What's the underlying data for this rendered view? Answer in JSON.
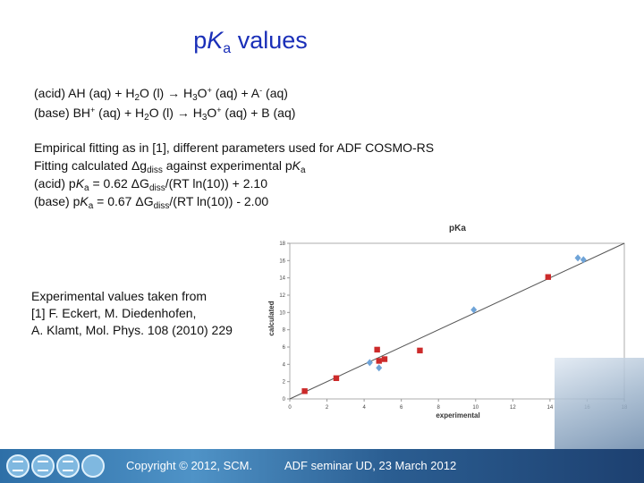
{
  "slide": {
    "title": {
      "p": "p",
      "K": "K",
      "a": "a",
      "rest": " values"
    },
    "equations": {
      "acid": {
        "pre": "(acid) AH (aq) + H",
        "s1": "2",
        "mid1": "O (l) → H",
        "s2": "3",
        "mid2": "O",
        "sup1": "+",
        "mid3": " (aq) + A",
        "sup2": "-",
        "post": " (aq)"
      },
      "base": {
        "pre": "(base) BH",
        "sup1": "+",
        "mid1": " (aq) + H",
        "s1": "2",
        "mid2": "O (l) → H",
        "s2": "3",
        "mid3": "O",
        "sup2": "+",
        "post": " (aq) + B (aq)"
      }
    },
    "fitting": {
      "line1": "Empirical fitting as in [1], different parameters used for ADF COSMO-RS",
      "line2": {
        "pre": "Fitting calculated Δg",
        "sub": "diss",
        "mid": " against experimental p",
        "K": "K",
        "a": "a"
      },
      "acid": {
        "pre": "(acid) p",
        "K": "K",
        "a": "a",
        "mid": " = 0.62 ΔG",
        "sub": "diss",
        "post": "/(RT ln(10)) + 2.10"
      },
      "base": {
        "pre": "(base) p",
        "K": "K",
        "a": "a",
        "mid": " = 0.67 ΔG",
        "sub": "diss",
        "post": "/(RT ln(10)) - 2.00"
      }
    },
    "reference": {
      "line1": "Experimental values taken from",
      "line2": "[1] F. Eckert, M. Diedenhofen,",
      "line3": "A. Klamt, Mol. Phys. 108 (2010) 229"
    }
  },
  "footer": {
    "copyright": "Copyright © 2012, SCM.",
    "seminar": "ADF seminar UD,  23 March 2012"
  },
  "colors": {
    "title": "#1a2fb8",
    "acid_series": "#cc2a2a",
    "base_series": "#6fa4d8",
    "fit_line": "#555555"
  },
  "chart_data": {
    "type": "scatter",
    "title": "pKa",
    "xlabel": "experimental",
    "ylabel": "calculated",
    "xlim": [
      0,
      18
    ],
    "ylim": [
      0,
      18
    ],
    "xticks": [
      0,
      2,
      4,
      6,
      8,
      10,
      12,
      14,
      16,
      18
    ],
    "yticks": [
      0,
      2,
      4,
      6,
      8,
      10,
      12,
      14,
      16,
      18
    ],
    "grid": false,
    "fit_line": [
      [
        0,
        0
      ],
      [
        18,
        18
      ]
    ],
    "series": [
      {
        "marker": "square",
        "color": "#cc2a2a",
        "points": [
          [
            0.8,
            0.9
          ],
          [
            2.5,
            2.4
          ],
          [
            4.7,
            5.7
          ],
          [
            4.8,
            4.4
          ],
          [
            5.1,
            4.6
          ],
          [
            7.0,
            5.6
          ],
          [
            13.9,
            14.1
          ]
        ]
      },
      {
        "marker": "diamond",
        "color": "#6fa4d8",
        "points": [
          [
            4.3,
            4.2
          ],
          [
            4.8,
            3.6
          ],
          [
            9.9,
            10.3
          ],
          [
            15.5,
            16.3
          ],
          [
            15.8,
            16.1
          ]
        ]
      }
    ]
  }
}
